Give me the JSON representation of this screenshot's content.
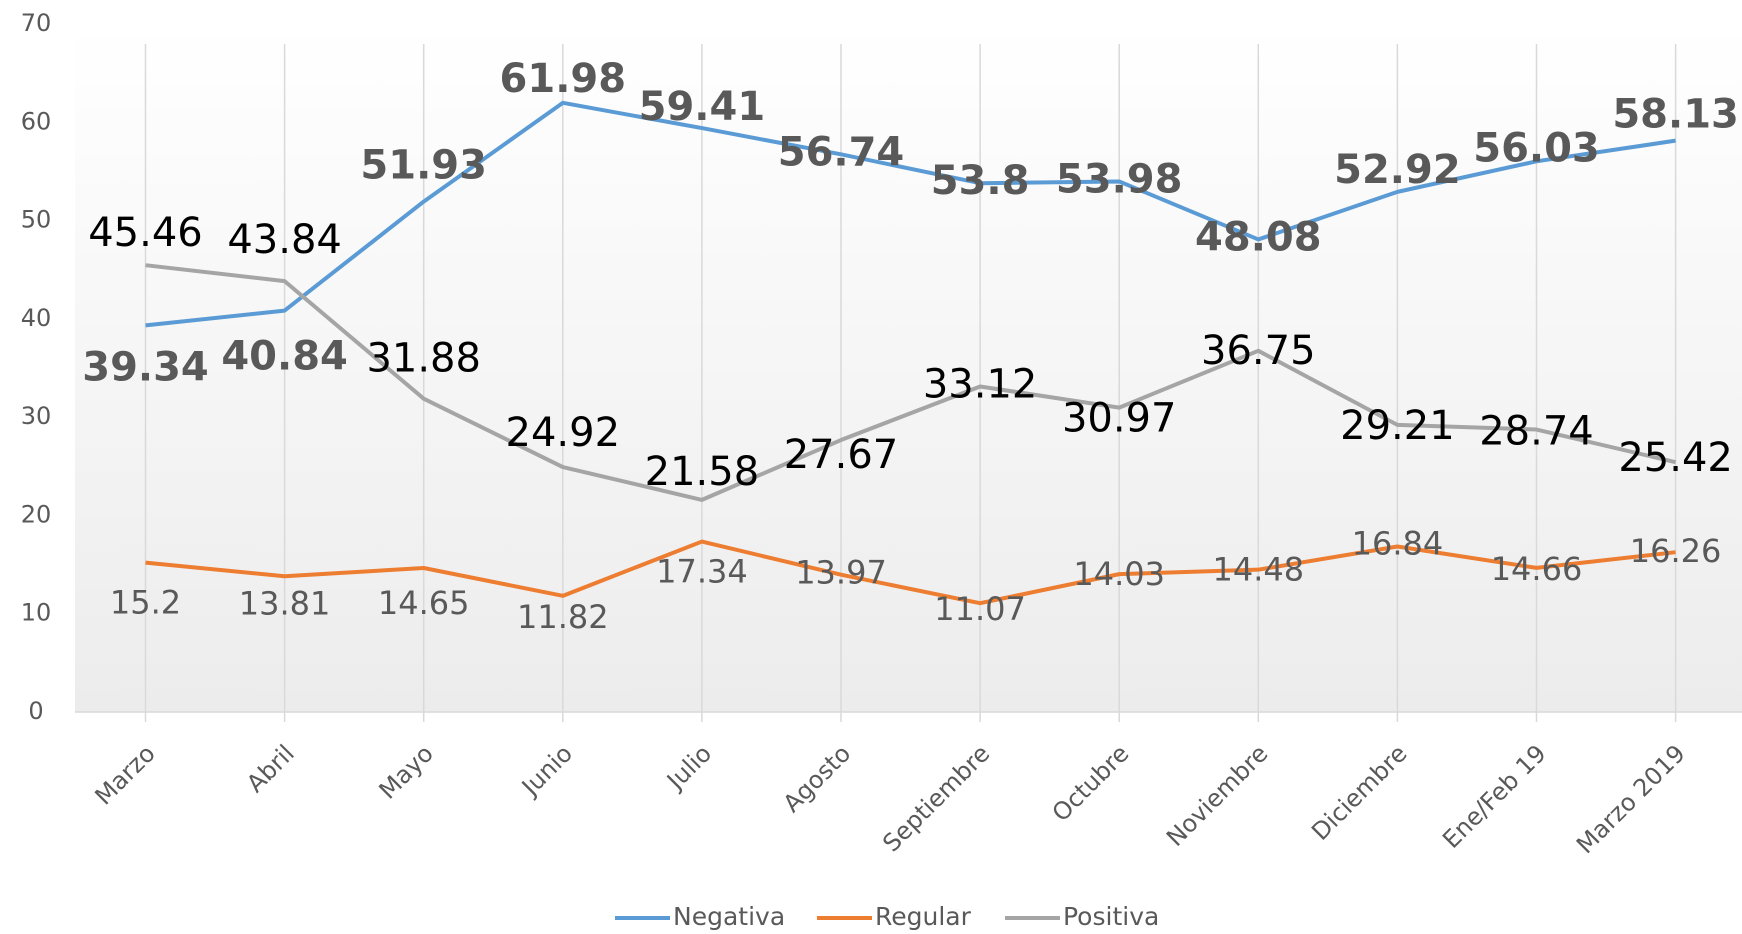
{
  "chart_data": {
    "type": "line",
    "categories": [
      "Marzo",
      "Abril",
      "Mayo",
      "Junio",
      "Julio",
      "Agosto",
      "Septiembre",
      "Octubre",
      "Noviembre",
      "Diciembre",
      "Ene/Feb 19",
      "Marzo 2019"
    ],
    "series": [
      {
        "name": "Negativa",
        "color": "#5b9bd5",
        "values": [
          39.34,
          40.84,
          51.93,
          61.98,
          59.41,
          56.74,
          53.8,
          53.98,
          48.08,
          52.92,
          56.03,
          58.13
        ]
      },
      {
        "name": "Regular",
        "color": "#ed7d31",
        "values": [
          15.2,
          13.81,
          14.65,
          11.82,
          17.34,
          13.97,
          11.07,
          14.03,
          14.48,
          16.84,
          14.66,
          16.26
        ]
      },
      {
        "name": "Positiva",
        "color": "#a5a5a5",
        "values": [
          45.46,
          43.84,
          31.88,
          24.92,
          21.58,
          27.67,
          33.12,
          30.97,
          36.75,
          29.21,
          28.74,
          25.42
        ]
      }
    ],
    "ylim": [
      0,
      70
    ],
    "yticks": [
      0,
      10,
      20,
      30,
      40,
      50,
      60,
      70
    ],
    "legend": "bottom"
  }
}
